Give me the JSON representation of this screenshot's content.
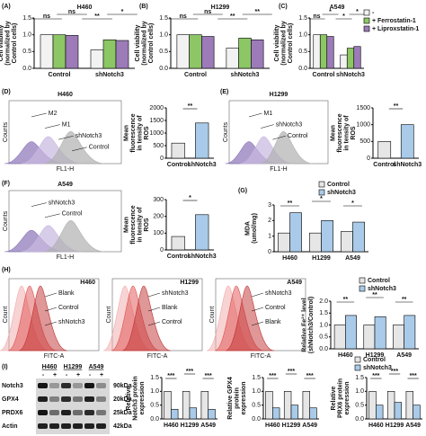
{
  "chart_data": [
    {
      "type": "bar",
      "panel": "(A)",
      "title": "H460",
      "ylabel": [
        "Cell viability",
        "(normalized by",
        "Control cells)"
      ],
      "categories": [
        "Control",
        "shNotch3"
      ],
      "series": [
        {
          "name": "-",
          "color": "#f2f2f2",
          "values": [
            1.0,
            0.55
          ]
        },
        {
          "name": "+ Ferrostatin-1",
          "color": "#8cc665",
          "values": [
            1.0,
            0.85
          ]
        },
        {
          "name": "+ Liproxstatin-1",
          "color": "#9c7bb8",
          "values": [
            0.98,
            0.83
          ]
        }
      ],
      "ylim": [
        0,
        1.5
      ],
      "yticks": [
        {
          "value": 0,
          "label": "0.0"
        },
        0.5,
        {
          "value": 1,
          "label": "1.0"
        },
        1.5
      ],
      "annotations": [
        "ns",
        "ns",
        "**",
        "*"
      ]
    },
    {
      "type": "bar",
      "panel": "(B)",
      "title": "H1299",
      "ylabel": [
        "Cell viability",
        "(normalized by",
        "Control cells)"
      ],
      "categories": [
        "Control",
        "shNotch3"
      ],
      "series": [
        {
          "name": "-",
          "color": "#f2f2f2",
          "values": [
            1.0,
            0.6
          ]
        },
        {
          "name": "+ Ferrostatin-1",
          "color": "#8cc665",
          "values": [
            1.0,
            0.9
          ]
        },
        {
          "name": "+ Liproxstatin-1",
          "color": "#9c7bb8",
          "values": [
            0.95,
            0.85
          ]
        }
      ],
      "ylim": [
        0,
        1.5
      ],
      "yticks": [
        {
          "value": 0,
          "label": "0.0"
        },
        0.5,
        {
          "value": 1,
          "label": "1.0"
        },
        1.5
      ],
      "annotations": [
        "ns",
        "ns",
        "**",
        "**"
      ]
    },
    {
      "type": "bar",
      "panel": "(C)",
      "title": "A549",
      "ylabel": [
        "Cell viability",
        "(normalized by",
        "Control cells)"
      ],
      "categories": [
        "Control",
        "shNotch3"
      ],
      "series": [
        {
          "name": "-",
          "color": "#f2f2f2",
          "values": [
            1.0,
            0.4
          ]
        },
        {
          "name": "+ Ferrostatin-1",
          "color": "#8cc665",
          "values": [
            1.0,
            0.6
          ]
        },
        {
          "name": "+ Liproxstatin-1",
          "color": "#9c7bb8",
          "values": [
            0.95,
            0.65
          ]
        }
      ],
      "ylim": [
        0,
        1.5
      ],
      "yticks": [
        {
          "value": 0,
          "label": "0.0"
        },
        0.5,
        {
          "value": 1,
          "label": "1.0"
        },
        1.5
      ],
      "annotations": [
        "ns",
        "*",
        "*",
        "*"
      ],
      "legend": true
    },
    {
      "type": "bar",
      "ylabel": [
        "Mean",
        "fluorescence",
        "in tensity of",
        "ROS"
      ],
      "categories": [
        "Control",
        "shNotch3"
      ],
      "series": [
        {
          "name": "Control",
          "color": "#e6e6e6",
          "values": [
            600,
            1400
          ]
        }
      ],
      "ylim": [
        0,
        2000
      ],
      "yticks": [
        0,
        500,
        1000,
        1500,
        2000
      ],
      "annotations": [
        "**"
      ]
    },
    {
      "type": "bar",
      "ylabel": [
        "Mean",
        "fluorescence",
        "in tensity of",
        "ROS"
      ],
      "categories": [
        "Control",
        "shNotch3"
      ],
      "series": [
        {
          "name": "Control",
          "color": "#e6e6e6",
          "values": [
            500,
            1000
          ]
        }
      ],
      "ylim": [
        0,
        1500
      ],
      "yticks": [
        0,
        500,
        1000,
        1500
      ],
      "annotations": [
        "**"
      ]
    },
    {
      "type": "bar",
      "ylabel": [
        "Mean",
        "fluorescence",
        "in tensity of",
        "ROS"
      ],
      "categories": [
        "Control",
        "shNotch3"
      ],
      "series": [
        {
          "name": "Control",
          "color": "#e6e6e6",
          "values": [
            80,
            210
          ]
        }
      ],
      "ylim": [
        0,
        300
      ],
      "yticks": [
        0,
        100,
        200,
        300
      ],
      "annotations": [
        "*"
      ]
    },
    {
      "type": "bar",
      "panel": "(G)",
      "ylabel": [
        "MDA",
        "(umol/mg)"
      ],
      "categories": [
        "H460",
        "H1299",
        "A549"
      ],
      "series": [
        {
          "name": "Control",
          "color": "#e6e6e6",
          "values": [
            1.2,
            1.2,
            1.3
          ]
        },
        {
          "name": "shNotch3",
          "color": "#a9cbe9",
          "values": [
            2.5,
            2.0,
            1.9
          ]
        }
      ],
      "ylim": [
        0,
        3
      ],
      "yticks": [
        0,
        1,
        2,
        3
      ],
      "annotations": [
        "**",
        "*",
        "*"
      ],
      "legend": true
    },
    {
      "type": "bar",
      "ylabel": [
        "Relative Fe²⁺ level",
        "(shNotch3/Control)"
      ],
      "categories": [
        "H460",
        "H1299",
        "A549"
      ],
      "series": [
        {
          "name": "Control",
          "color": "#e6e6e6",
          "values": [
            1.0,
            1.0,
            1.0
          ]
        },
        {
          "name": "shNotch3",
          "color": "#a9cbe9",
          "values": [
            1.4,
            1.35,
            1.4
          ]
        }
      ],
      "ylim": [
        0,
        2
      ],
      "yticks": [
        {
          "value": 0,
          "label": "0.0"
        },
        0.5,
        {
          "value": 1,
          "label": "1.0"
        },
        1.5,
        {
          "value": 2,
          "label": "2.0"
        }
      ],
      "annotations": [
        "**",
        "**",
        "**"
      ],
      "legend": true
    },
    {
      "type": "bar",
      "ylabel": [
        "Relative",
        "Notch3 protein",
        "expression"
      ],
      "categories": [
        "H460",
        "H1299",
        "A549"
      ],
      "series": [
        {
          "name": "Control",
          "color": "#e6e6e6",
          "values": [
            1.0,
            1.0,
            1.0
          ]
        },
        {
          "name": "shNotch3",
          "color": "#a9cbe9",
          "values": [
            0.35,
            0.4,
            0.35
          ]
        }
      ],
      "ylim": [
        0,
        1.5
      ],
      "yticks": [
        {
          "value": 0,
          "label": "0.0"
        },
        0.5,
        {
          "value": 1,
          "label": "1.0"
        },
        1.5
      ],
      "annotations": [
        "***",
        "***",
        "***"
      ]
    },
    {
      "type": "bar",
      "ylabel": [
        "Relative GPX4",
        "protein",
        "expression"
      ],
      "categories": [
        "H460",
        "H1299",
        "A549"
      ],
      "series": [
        {
          "name": "Control",
          "color": "#e6e6e6",
          "values": [
            1.0,
            1.0,
            1.0
          ]
        },
        {
          "name": "shNotch3",
          "color": "#a9cbe9",
          "values": [
            0.4,
            0.5,
            0.4
          ]
        }
      ],
      "ylim": [
        0,
        1.5
      ],
      "yticks": [
        {
          "value": 0,
          "label": "0.0"
        },
        0.5,
        {
          "value": 1,
          "label": "1.0"
        },
        1.5
      ],
      "annotations": [
        "***",
        "***",
        "***"
      ]
    },
    {
      "type": "bar",
      "ylabel": [
        "Relative",
        "PRX6 protein",
        "expression"
      ],
      "categories": [
        "H460",
        "H1299",
        "A549"
      ],
      "series": [
        {
          "name": "Control",
          "color": "#e6e6e6",
          "values": [
            1.0,
            1.0,
            1.0
          ]
        },
        {
          "name": "shNotch3",
          "color": "#a9cbe9",
          "values": [
            0.5,
            0.6,
            0.5
          ]
        }
      ],
      "ylim": [
        0,
        1.5
      ],
      "yticks": [
        {
          "value": 0,
          "label": "0.0"
        },
        0.5,
        {
          "value": 1,
          "label": "1.0"
        },
        1.5
      ],
      "annotations": [
        "***",
        "***",
        "***"
      ],
      "legend": true
    }
  ],
  "flow_panels": [
    {
      "panel": "(D)",
      "title": "H460",
      "xlabel": "FL1-H",
      "ylabel": "Counts",
      "labels": [
        "M2",
        "M1",
        "shNotch3",
        "Control"
      ]
    },
    {
      "panel": "(E)",
      "title": "H1299",
      "xlabel": "FL1-H",
      "ylabel": "Counts",
      "labels": [
        "M1",
        "shNotch3",
        "Control"
      ]
    },
    {
      "panel": "(F)",
      "title": "A549",
      "xlabel": "FL1-H",
      "ylabel": "Counts",
      "labels": [
        "shNotch3",
        "Control"
      ]
    },
    {
      "panel": "(H)",
      "title": "H460",
      "xlabel": "FITC-A",
      "ylabel": "Count",
      "labels": [
        "Blank",
        "Control",
        "shNotch3"
      ]
    },
    {
      "title": "H1299",
      "xlabel": "FITC-A",
      "ylabel": "Count",
      "labels": [
        "shNotch3",
        "Blank",
        "Control"
      ]
    },
    {
      "title": "A549",
      "xlabel": "FITC-A",
      "ylabel": "Count",
      "labels": [
        "shNotch3",
        "Control",
        "Blank"
      ]
    }
  ],
  "blot": {
    "panel": "(I)",
    "cells": [
      "H460",
      "H1299",
      "A549"
    ],
    "lanes": [
      "-",
      "+",
      "-",
      "+",
      "-",
      "+"
    ],
    "proteins": [
      "Notch3",
      "GPX4",
      "PRDX6",
      "Actin"
    ],
    "sizes": [
      "90kDa",
      "20kDa",
      "25kDa",
      "42kDa"
    ]
  }
}
